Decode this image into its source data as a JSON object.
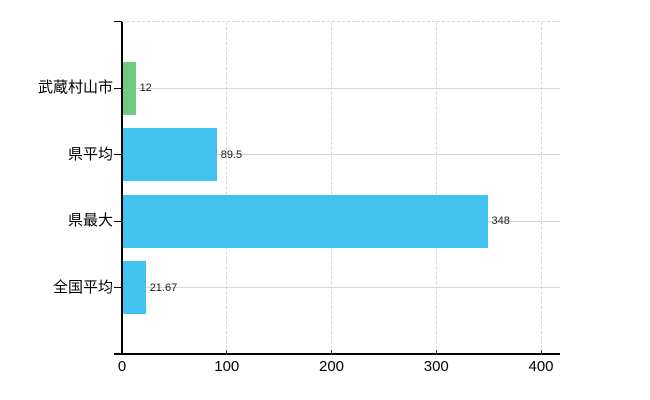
{
  "chart_data": {
    "type": "bar",
    "orientation": "horizontal",
    "title": "",
    "xlabel": "",
    "ylabel": "",
    "categories": [
      "武蔵村山市",
      "県平均",
      "県最大",
      "全国平均"
    ],
    "values": [
      12,
      89.5,
      348,
      21.67
    ],
    "value_labels": [
      "12",
      "89.5",
      "348",
      "21.67"
    ],
    "bar_colors": [
      "#6fca7e",
      "#41c2ef",
      "#41c2ef",
      "#41c2ef"
    ],
    "x_ticks": [
      0,
      100,
      200,
      300,
      400
    ],
    "x_tick_labels": [
      "0",
      "100",
      "200",
      "300",
      "400"
    ],
    "xlim": [
      0,
      418
    ],
    "grid": true,
    "legend": false,
    "gridline_style": "vertical-dashed-horizontal-solid"
  },
  "colors": {
    "background": "#ffffff",
    "axis": "#000000",
    "gridline": "#d6d9d3",
    "tick_mark": "#444444",
    "category_label": "#000000",
    "value_label": "#1a1a1a",
    "highlight_bar": "#6fca7e",
    "default_bar": "#41c2ef"
  }
}
